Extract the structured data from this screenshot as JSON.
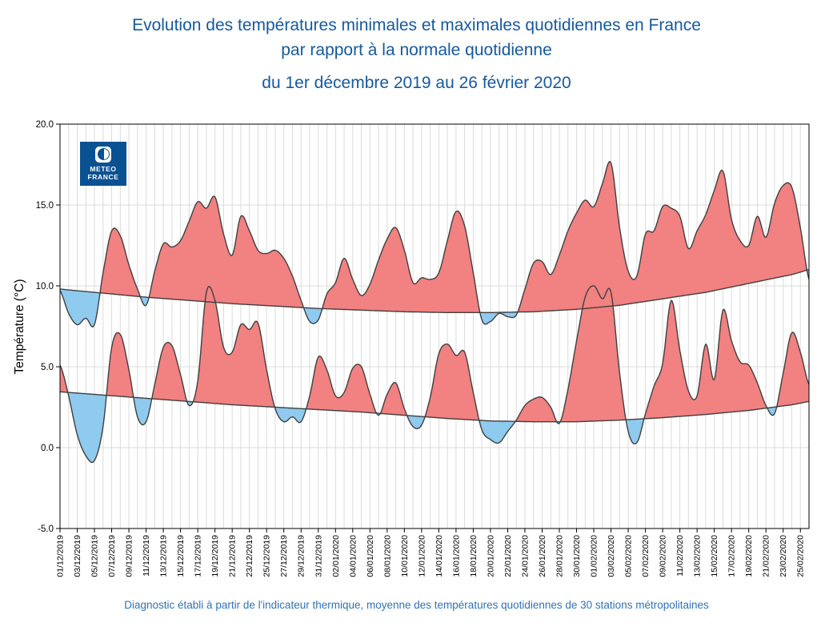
{
  "header": {
    "title_line1": "Evolution des températures minimales et maximales quotidiennes en France",
    "title_line2": "par rapport à la normale quotidienne",
    "subtitle": "du 1er décembre 2019 au 26 février 2020",
    "title_color": "#15599F"
  },
  "footer": {
    "caption": "Diagnostic établi à partir de l'indicateur thermique, moyenne des températures quotidiennes de 30 stations métropolitaines",
    "caption_color": "#2E74B6"
  },
  "logo": {
    "line1": "METEO",
    "line2": "FRANCE",
    "background": "#0A5192"
  },
  "chart_data": {
    "type": "area",
    "ylabel": "Température (°C)",
    "ylim": [
      -5,
      20
    ],
    "ytick_labels": [
      "20.0",
      "15.0",
      "10.0",
      "5.0",
      "0.0",
      "-5.0"
    ],
    "ytick_values": [
      20,
      15,
      10,
      5,
      0,
      -5
    ],
    "grid": "on",
    "x_start_date": "01/12/2019",
    "x_end_date": "26/02/2020",
    "n_days": 88,
    "x_tick_every_days": 2,
    "x_tick_labels": [
      "01/12/2019",
      "03/12/2019",
      "05/12/2019",
      "07/12/2019",
      "09/12/2019",
      "11/12/2019",
      "13/12/2019",
      "15/12/2019",
      "17/12/2019",
      "19/12/2019",
      "21/12/2019",
      "23/12/2019",
      "25/12/2019",
      "27/12/2019",
      "29/12/2019",
      "31/12/2019",
      "02/01/2020",
      "04/01/2020",
      "06/01/2020",
      "08/01/2020",
      "10/01/2020",
      "12/01/2020",
      "14/01/2020",
      "16/01/2020",
      "18/01/2020",
      "20/01/2020",
      "22/01/2020",
      "24/01/2020",
      "26/01/2020",
      "28/01/2020",
      "30/01/2020",
      "01/02/2020",
      "03/02/2020",
      "05/02/2020",
      "07/02/2020",
      "09/02/2020",
      "11/02/2020",
      "13/02/2020",
      "15/02/2020",
      "17/02/2020",
      "19/02/2020",
      "21/02/2020",
      "23/02/2020",
      "25/02/2020"
    ],
    "series": {
      "tmax": [
        9.7,
        8.3,
        7.6,
        8.0,
        7.6,
        10.8,
        13.4,
        13.1,
        11.3,
        9.8,
        8.8,
        10.9,
        12.6,
        12.4,
        12.8,
        14.0,
        15.2,
        14.8,
        15.5,
        13.2,
        11.9,
        14.3,
        13.4,
        12.2,
        12.0,
        12.2,
        11.7,
        10.6,
        9.1,
        7.8,
        7.9,
        9.5,
        10.2,
        11.7,
        10.4,
        9.4,
        10.1,
        11.6,
        12.9,
        13.6,
        12.2,
        10.2,
        10.5,
        10.4,
        10.8,
        12.8,
        14.6,
        13.7,
        10.8,
        7.9,
        7.8,
        8.3,
        8.1,
        8.2,
        9.8,
        11.4,
        11.5,
        10.7,
        11.9,
        13.4,
        14.5,
        15.3,
        14.9,
        16.3,
        17.6,
        13.6,
        10.9,
        10.6,
        13.2,
        13.4,
        14.9,
        14.8,
        14.3,
        12.3,
        13.4,
        14.4,
        15.9,
        17.1,
        14.1,
        12.8,
        12.5,
        14.3,
        13.0,
        15.1,
        16.2,
        16.1,
        13.6,
        10.4
      ],
      "tmax_normale": [
        9.8,
        9.75,
        9.7,
        9.65,
        9.6,
        9.55,
        9.5,
        9.45,
        9.4,
        9.35,
        9.3,
        9.26,
        9.22,
        9.18,
        9.14,
        9.1,
        9.06,
        9.02,
        8.98,
        8.94,
        8.9,
        8.87,
        8.84,
        8.81,
        8.78,
        8.75,
        8.72,
        8.69,
        8.66,
        8.63,
        8.6,
        8.58,
        8.56,
        8.54,
        8.52,
        8.5,
        8.48,
        8.46,
        8.44,
        8.42,
        8.4,
        8.39,
        8.38,
        8.37,
        8.36,
        8.35,
        8.35,
        8.35,
        8.35,
        8.35,
        8.35,
        8.36,
        8.37,
        8.38,
        8.39,
        8.4,
        8.43,
        8.46,
        8.49,
        8.52,
        8.55,
        8.6,
        8.65,
        8.7,
        8.75,
        8.8,
        8.88,
        8.96,
        9.04,
        9.12,
        9.2,
        9.28,
        9.36,
        9.44,
        9.52,
        9.6,
        9.71,
        9.82,
        9.93,
        10.04,
        10.15,
        10.26,
        10.37,
        10.48,
        10.59,
        10.7,
        10.85,
        11.0
      ],
      "tmin": [
        5.1,
        3.2,
        0.8,
        -0.5,
        -0.8,
        1.3,
        6.2,
        7.0,
        4.8,
        1.9,
        1.6,
        3.9,
        6.2,
        6.3,
        4.5,
        2.6,
        4.1,
        9.6,
        9.1,
        6.2,
        5.9,
        7.6,
        7.3,
        7.7,
        4.8,
        2.4,
        1.6,
        1.9,
        1.6,
        3.2,
        5.6,
        4.8,
        3.2,
        3.4,
        4.9,
        5.0,
        3.3,
        2.0,
        3.3,
        4.0,
        2.4,
        1.3,
        1.4,
        3.1,
        5.8,
        6.4,
        5.7,
        5.9,
        3.4,
        1.1,
        0.5,
        0.3,
        1.0,
        1.7,
        2.6,
        3.0,
        3.1,
        2.5,
        1.5,
        3.6,
        6.6,
        9.3,
        10.0,
        9.2,
        9.6,
        4.6,
        1.0,
        0.3,
        2.1,
        3.8,
        5.2,
        9.1,
        6.0,
        3.5,
        3.2,
        6.4,
        4.2,
        8.5,
        6.6,
        5.3,
        5.1,
        4.0,
        2.6,
        2.1,
        4.6,
        7.1,
        5.9,
        3.9
      ],
      "tmin_normale": [
        3.45,
        3.41,
        3.37,
        3.33,
        3.29,
        3.25,
        3.21,
        3.17,
        3.13,
        3.09,
        3.05,
        3.01,
        2.97,
        2.93,
        2.89,
        2.85,
        2.81,
        2.77,
        2.73,
        2.69,
        2.65,
        2.62,
        2.59,
        2.56,
        2.53,
        2.5,
        2.47,
        2.44,
        2.41,
        2.38,
        2.35,
        2.32,
        2.29,
        2.26,
        2.23,
        2.2,
        2.16,
        2.12,
        2.08,
        2.04,
        2.0,
        1.96,
        1.92,
        1.88,
        1.84,
        1.8,
        1.77,
        1.74,
        1.71,
        1.68,
        1.65,
        1.64,
        1.63,
        1.62,
        1.61,
        1.6,
        1.6,
        1.6,
        1.6,
        1.6,
        1.6,
        1.62,
        1.64,
        1.66,
        1.68,
        1.7,
        1.73,
        1.76,
        1.79,
        1.82,
        1.85,
        1.89,
        1.93,
        1.97,
        2.01,
        2.05,
        2.1,
        2.15,
        2.2,
        2.25,
        2.3,
        2.37,
        2.44,
        2.51,
        2.58,
        2.65,
        2.75,
        2.85
      ]
    },
    "colors": {
      "above_normale": "#F28181",
      "below_normale": "#8FCAEF",
      "curve": "#3F3F3F",
      "grid": "#DBDBDB",
      "axis": "#000000"
    }
  }
}
